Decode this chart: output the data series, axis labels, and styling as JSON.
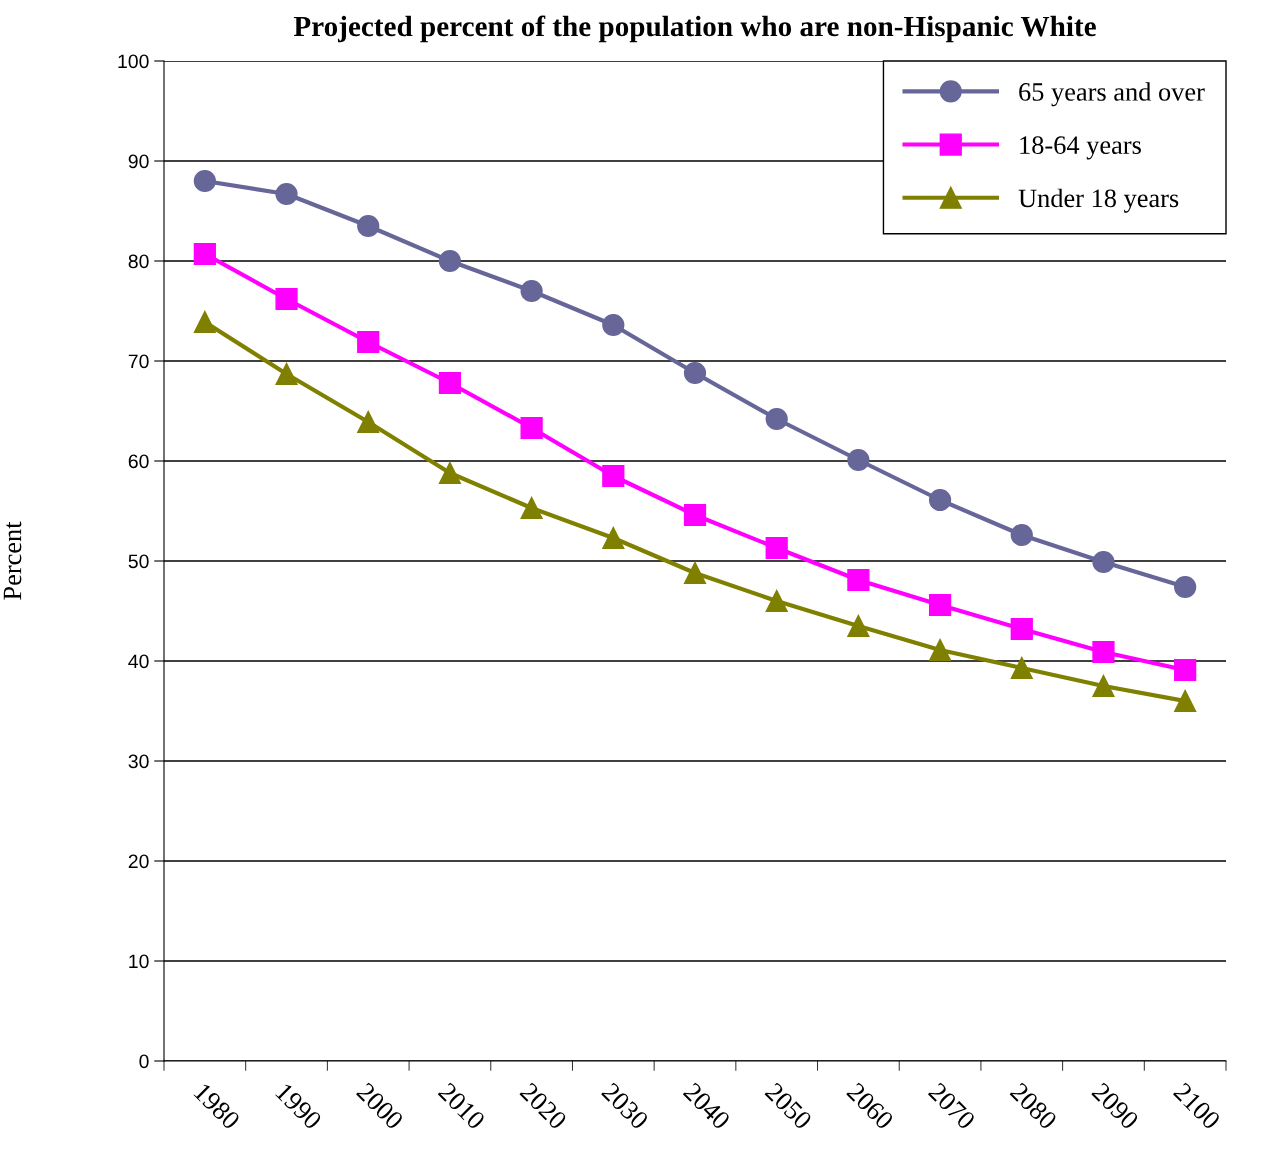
{
  "chart_data": {
    "type": "line",
    "title": "Projected percent of the population who are non-Hispanic White",
    "ylabel": "Percent",
    "categories": [
      "1980",
      "1990",
      "2000",
      "2010",
      "2020",
      "2030",
      "2040",
      "2050",
      "2060",
      "2070",
      "2080",
      "2090",
      "2100"
    ],
    "series": [
      {
        "name": "65 years and over",
        "color": "#666699",
        "marker": "circle",
        "values": [
          88.0,
          86.7,
          83.5,
          80.0,
          77.0,
          73.6,
          68.8,
          64.2,
          60.1,
          56.1,
          52.6,
          49.9,
          47.4
        ]
      },
      {
        "name": "18-64 years",
        "color": "#ff00ff",
        "marker": "square",
        "values": [
          80.7,
          76.2,
          71.9,
          67.8,
          63.3,
          58.5,
          54.6,
          51.3,
          48.1,
          45.6,
          43.2,
          40.9,
          39.1
        ]
      },
      {
        "name": "Under 18 years",
        "color": "#808000",
        "marker": "triangle",
        "values": [
          73.9,
          68.7,
          63.9,
          58.8,
          55.3,
          52.3,
          48.8,
          46.0,
          43.5,
          41.1,
          39.3,
          37.5,
          36.0
        ]
      }
    ],
    "ylim": [
      0,
      100
    ],
    "yticks": [
      0,
      10,
      20,
      30,
      40,
      50,
      60,
      70,
      80,
      90,
      100
    ],
    "grid": "y",
    "legend": "top right",
    "line_style": "solid"
  }
}
